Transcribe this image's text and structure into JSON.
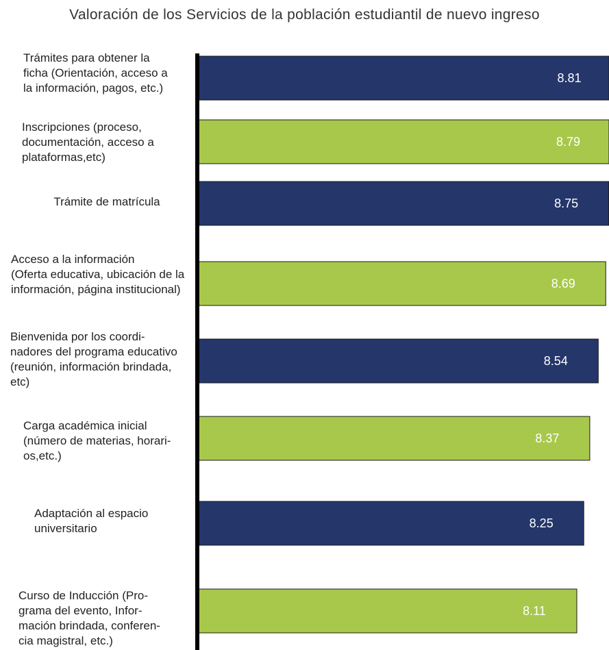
{
  "title": "Valoración de los Servicios de la población estudiantil de nuevo ingreso",
  "colors": {
    "navy": "#24366a",
    "green": "#a8c84b",
    "axis": "#000000"
  },
  "chart_data": {
    "type": "bar",
    "orientation": "horizontal",
    "title": "Valoración de los Servicios de la población estudiantil de nuevo ingreso",
    "categories": [
      [
        "Trámites para obtener la",
        "ficha (Orientación, acceso a",
        "la información, pagos, etc.)"
      ],
      [
        "Inscripciones (proceso,",
        "documentación, acceso a",
        "plataformas,etc)"
      ],
      [
        "Trámite de matrícula"
      ],
      [
        "Acceso a la información",
        "(Oferta educativa, ubicación de la",
        "información, página institucional)"
      ],
      [
        "Bienvenida por los coordi-",
        "nadores del programa educativo",
        "(reunión, información brindada,",
        "etc)"
      ],
      [
        "Carga académica inicial",
        "(número de materias, horari-",
        "os,etc.)"
      ],
      [
        "Adaptación al espacio",
        "universitario"
      ],
      [
        "Curso de Inducción (Pro-",
        "grama del evento, Infor-",
        "mación brindada, conferen-",
        "cia magistral, etc.)"
      ]
    ],
    "values": [
      8.81,
      8.79,
      8.75,
      8.69,
      8.54,
      8.37,
      8.25,
      8.11
    ],
    "value_labels": [
      "8.81",
      "8.79",
      "8.75",
      "8.69",
      "8.54",
      "8.37",
      "8.25",
      "8.11"
    ],
    "bar_colors": [
      "navy",
      "green",
      "navy",
      "green",
      "navy",
      "green",
      "navy",
      "green"
    ],
    "xlabel": "",
    "ylabel": "",
    "legend": "none",
    "grid": false
  }
}
